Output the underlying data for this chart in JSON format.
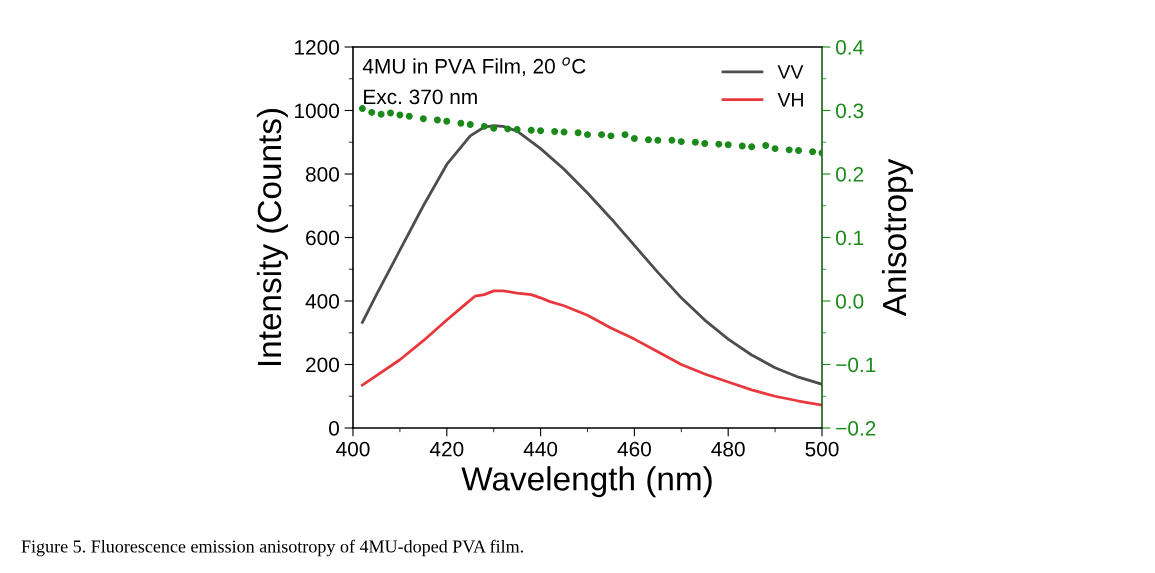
{
  "chart_data": {
    "type": "line",
    "xlabel": "Wavelength (nm)",
    "ylabel": "Intensity (Counts)",
    "y2label": "Anisotropy",
    "annotations": [
      "4MU in PVA Film, 20 $^{o}$C",
      "Exc. 370 nm",
      "Figure 5. Fluorescence emission anisotropy of 4MU-doped PVA film."
    ],
    "xlim": [
      400,
      500
    ],
    "xticks": [
      400,
      420,
      440,
      460,
      480,
      500
    ],
    "ylim": [
      0,
      1200
    ],
    "yticks": [
      0,
      200,
      400,
      600,
      800,
      1000,
      1200
    ],
    "y2lim": [
      -0.2,
      0.4
    ],
    "y2ticks": [
      {
        "value": -0.2,
        "label": "−0.2"
      },
      {
        "value": -0.1,
        "label": "−0.1"
      },
      {
        "value": 0.0,
        "label": "0.0"
      },
      {
        "value": 0.1,
        "label": "0.1"
      },
      {
        "value": 0.2,
        "label": "0.2"
      },
      {
        "value": 0.3,
        "label": "0.3"
      },
      {
        "value": 0.4,
        "label": "0.4"
      }
    ],
    "legend": "top right",
    "grid": false,
    "series": [
      {
        "name": "VV",
        "color": "#4d4d4d",
        "x": [
          402,
          405,
          410,
          415,
          420,
          425,
          428,
          430,
          432,
          435,
          440,
          445,
          450,
          455,
          460,
          465,
          470,
          475,
          480,
          485,
          490,
          495,
          500
        ],
        "values": [
          333,
          420,
          560,
          700,
          830,
          920,
          948,
          952,
          950,
          935,
          880,
          815,
          740,
          660,
          575,
          490,
          410,
          340,
          280,
          230,
          190,
          160,
          138
        ]
      },
      {
        "name": "VH",
        "color": "#e8383d",
        "x": [
          402,
          405,
          410,
          415,
          420,
          424,
          426,
          428,
          430,
          432,
          435,
          438,
          440,
          442,
          445,
          450,
          455,
          460,
          465,
          470,
          475,
          480,
          485,
          490,
          495,
          500
        ],
        "values": [
          135,
          165,
          215,
          275,
          340,
          390,
          415,
          420,
          432,
          432,
          425,
          420,
          410,
          398,
          385,
          355,
          315,
          280,
          240,
          200,
          170,
          145,
          120,
          100,
          85,
          72
        ]
      },
      {
        "type": "scatter",
        "axis": "y2",
        "color": "#1a8a1a",
        "marker": "circle",
        "x": [
          402,
          404,
          406,
          408,
          410,
          412,
          415,
          418,
          420,
          423,
          425,
          428,
          430,
          433,
          435,
          438,
          440,
          443,
          445,
          448,
          450,
          453,
          455,
          458,
          460,
          463,
          465,
          468,
          470,
          473,
          475,
          478,
          480,
          483,
          485,
          488,
          490,
          493,
          495,
          498,
          500
        ],
        "values": [
          0.303,
          0.297,
          0.294,
          0.296,
          0.293,
          0.291,
          0.287,
          0.285,
          0.283,
          0.28,
          0.278,
          0.275,
          0.272,
          0.271,
          0.27,
          0.269,
          0.268,
          0.267,
          0.266,
          0.265,
          0.262,
          0.262,
          0.26,
          0.262,
          0.256,
          0.254,
          0.253,
          0.253,
          0.251,
          0.25,
          0.248,
          0.247,
          0.246,
          0.244,
          0.243,
          0.245,
          0.24,
          0.238,
          0.237,
          0.235,
          0.233
        ]
      }
    ]
  }
}
